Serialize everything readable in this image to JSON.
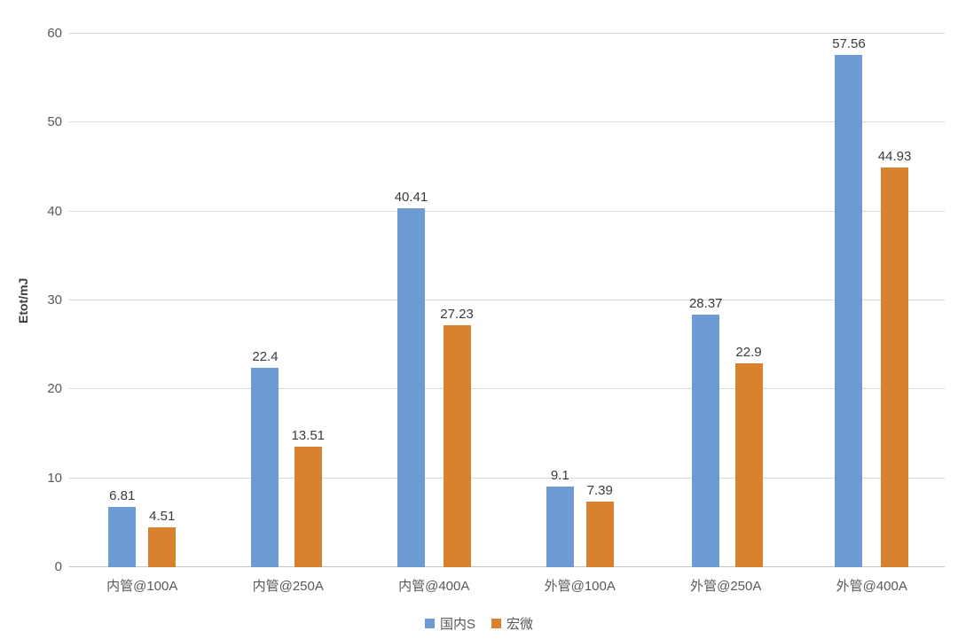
{
  "chart_data": {
    "type": "bar",
    "title": "",
    "xlabel": "",
    "ylabel": "Etot/mJ",
    "ylim": [
      0,
      60
    ],
    "yticks": [
      0,
      10,
      20,
      30,
      40,
      50,
      60
    ],
    "grid": true,
    "legend_position": "bottom",
    "categories": [
      "内管@100A",
      "内管@250A",
      "内管@400A",
      "外管@100A",
      "外管@250A",
      "外管@400A"
    ],
    "series": [
      {
        "name": "国内S",
        "color": "#6D9CD4",
        "values": [
          6.81,
          22.4,
          40.41,
          9.1,
          28.37,
          57.56
        ],
        "labels": [
          "6.81",
          "22.4",
          "40.41",
          "9.1",
          "28.37",
          "57.56"
        ]
      },
      {
        "name": "宏微",
        "color": "#D8812E",
        "values": [
          4.51,
          13.51,
          27.23,
          7.39,
          22.9,
          44.93
        ],
        "labels": [
          "4.51",
          "13.51",
          "27.23",
          "7.39",
          "22.9",
          "44.93"
        ]
      }
    ],
    "colors": {
      "gridline": "#d9d9d9",
      "axis_line": "#c6c6c6",
      "axis_text": "#595959",
      "value_text": "#3b3b3b",
      "background": "#ffffff"
    }
  }
}
